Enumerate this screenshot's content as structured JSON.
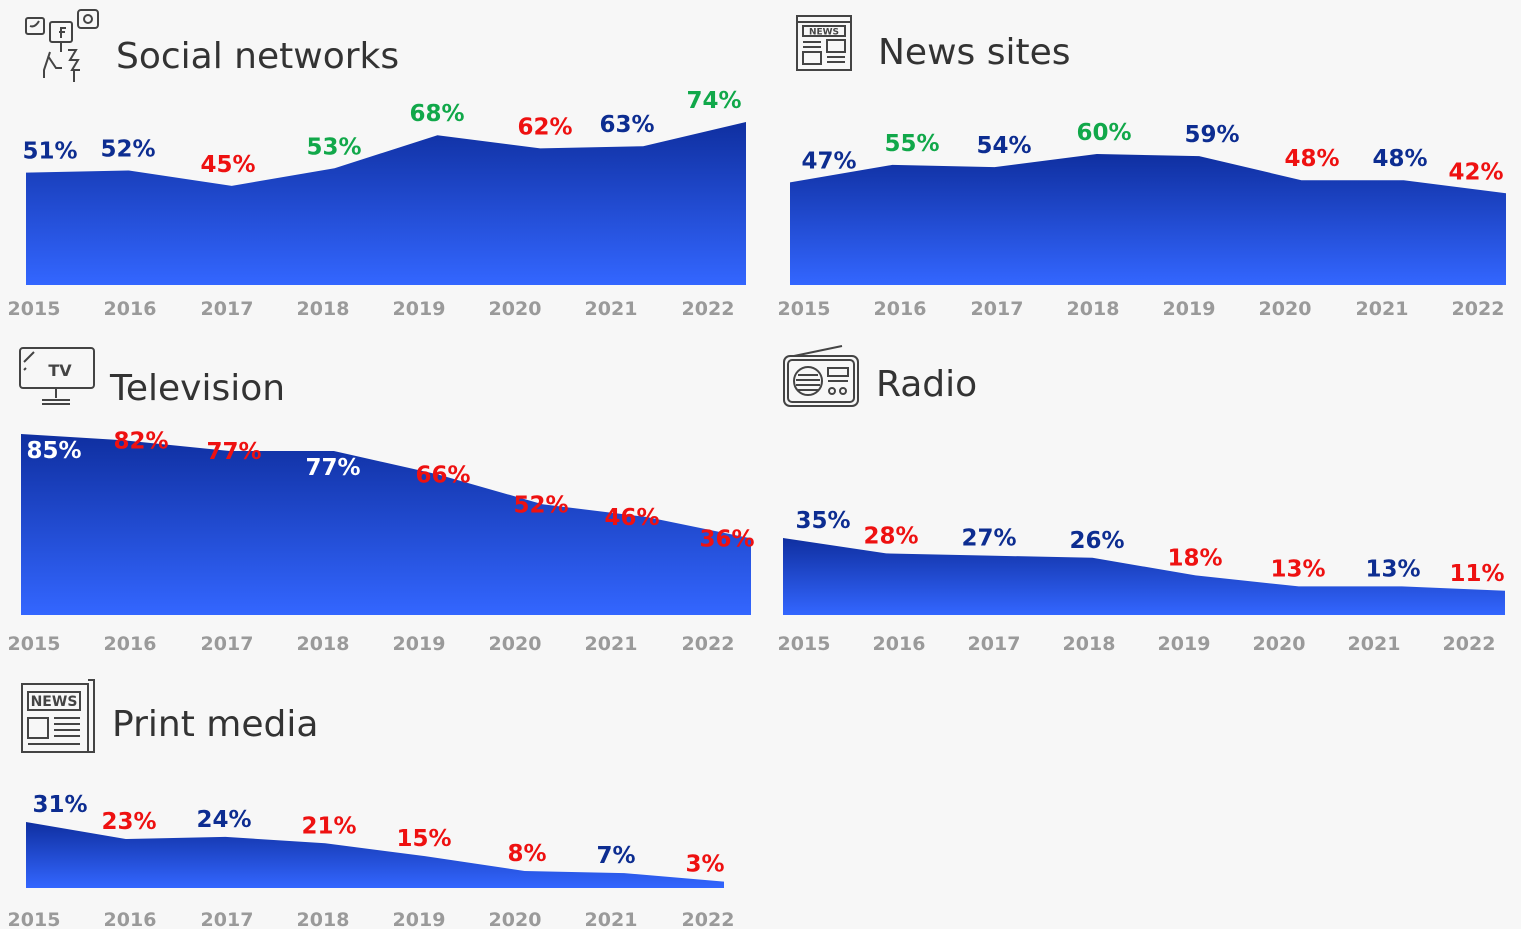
{
  "colors": {
    "increase": "#11a84a",
    "decrease": "#ee1111",
    "neutral": "#0d2d91",
    "inside": "#ffffff",
    "area_top": "#0f2fa0",
    "area_bottom": "#3366ff",
    "axis_text": "#9a9a9a"
  },
  "chart_data": [
    {
      "type": "area",
      "title": "Social networks",
      "icon": "social-networks-icon",
      "categories": [
        "2015",
        "2016",
        "2017",
        "2018",
        "2019",
        "2020",
        "2021",
        "2022"
      ],
      "values": [
        51,
        52,
        45,
        53,
        68,
        62,
        63,
        74
      ],
      "labels": [
        "51%",
        "52%",
        "45%",
        "53%",
        "68%",
        "62%",
        "63%",
        "74%"
      ],
      "label_status": [
        "neutral",
        "neutral",
        "decrease",
        "increase",
        "increase",
        "decrease",
        "neutral",
        "increase"
      ]
    },
    {
      "type": "area",
      "title": "News sites",
      "icon": "newspaper-icon",
      "categories": [
        "2015",
        "2016",
        "2017",
        "2018",
        "2019",
        "2020",
        "2021",
        "2022"
      ],
      "values": [
        47,
        55,
        54,
        60,
        59,
        48,
        48,
        42
      ],
      "labels": [
        "47%",
        "55%",
        "54%",
        "60%",
        "59%",
        "48%",
        "48%",
        "42%"
      ],
      "label_status": [
        "neutral",
        "increase",
        "neutral",
        "increase",
        "neutral",
        "decrease",
        "neutral",
        "decrease"
      ]
    },
    {
      "type": "area",
      "title": "Television",
      "icon": "tv-icon",
      "categories": [
        "2015",
        "2016",
        "2017",
        "2018",
        "2019",
        "2020",
        "2021",
        "2022"
      ],
      "values": [
        85,
        82,
        77,
        77,
        66,
        52,
        46,
        36
      ],
      "labels": [
        "85%",
        "82%",
        "77%",
        "77%",
        "66%",
        "52%",
        "46%",
        "36%"
      ],
      "label_status": [
        "inside",
        "decrease",
        "decrease",
        "inside",
        "decrease",
        "decrease",
        "decrease",
        "decrease"
      ]
    },
    {
      "type": "area",
      "title": "Radio",
      "icon": "radio-icon",
      "categories": [
        "2015",
        "2016",
        "2017",
        "2018",
        "2019",
        "2020",
        "2021",
        "2022"
      ],
      "values": [
        35,
        28,
        27,
        26,
        18,
        13,
        13,
        11
      ],
      "labels": [
        "35%",
        "28%",
        "27%",
        "26%",
        "18%",
        "13%",
        "13%",
        "11%"
      ],
      "label_status": [
        "neutral",
        "decrease",
        "neutral",
        "neutral",
        "decrease",
        "decrease",
        "neutral",
        "decrease"
      ]
    },
    {
      "type": "area",
      "title": "Print media",
      "icon": "news-print-icon",
      "categories": [
        "2015",
        "2016",
        "2017",
        "2018",
        "2019",
        "2020",
        "2021",
        "2022"
      ],
      "values": [
        31,
        23,
        24,
        21,
        15,
        8,
        7,
        3
      ],
      "labels": [
        "31%",
        "23%",
        "24%",
        "21%",
        "15%",
        "8%",
        "7%",
        "3%"
      ],
      "label_status": [
        "neutral",
        "decrease",
        "neutral",
        "decrease",
        "decrease",
        "decrease",
        "neutral",
        "decrease"
      ]
    }
  ]
}
